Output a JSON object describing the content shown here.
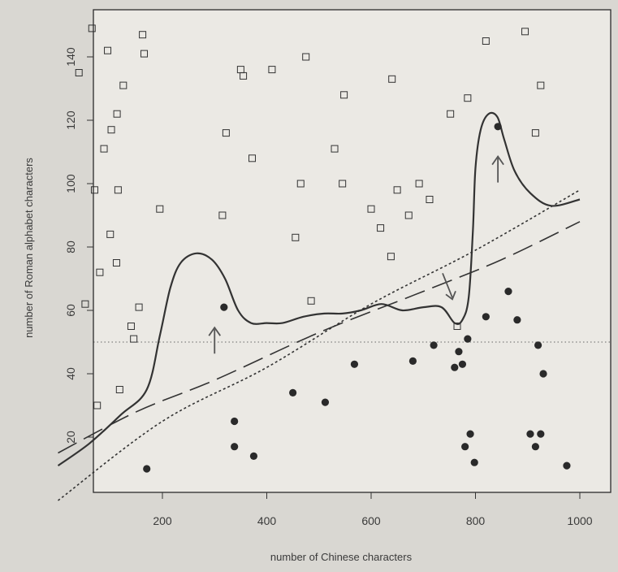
{
  "chart_data": {
    "type": "scatter",
    "title": "",
    "xlabel": "number of Chinese characters",
    "ylabel": "number of Roman alphabet characters",
    "xlim": [
      0,
      1000
    ],
    "ylim": [
      0,
      155
    ],
    "xticks": [
      200,
      400,
      600,
      800,
      1000
    ],
    "yticks": [
      20,
      40,
      60,
      80,
      100,
      120,
      140
    ],
    "grid": false,
    "legend": "none",
    "reference_line_y": 50,
    "series": [
      {
        "marker": "open-square",
        "points": [
          [
            40,
            135
          ],
          [
            52,
            62
          ],
          [
            65,
            149
          ],
          [
            70,
            98
          ],
          [
            75,
            30
          ],
          [
            80,
            72
          ],
          [
            88,
            111
          ],
          [
            95,
            142
          ],
          [
            100,
            84
          ],
          [
            102,
            117
          ],
          [
            112,
            75
          ],
          [
            113,
            122
          ],
          [
            115,
            98
          ],
          [
            118,
            35
          ],
          [
            125,
            131
          ],
          [
            140,
            55
          ],
          [
            145,
            51
          ],
          [
            155,
            61
          ],
          [
            162,
            147
          ],
          [
            165,
            141
          ],
          [
            195,
            92
          ],
          [
            315,
            90
          ],
          [
            322,
            116
          ],
          [
            350,
            136
          ],
          [
            355,
            134
          ],
          [
            372,
            108
          ],
          [
            410,
            136
          ],
          [
            455,
            83
          ],
          [
            465,
            100
          ],
          [
            475,
            140
          ],
          [
            485,
            63
          ],
          [
            530,
            111
          ],
          [
            545,
            100
          ],
          [
            548,
            128
          ],
          [
            600,
            92
          ],
          [
            618,
            86
          ],
          [
            638,
            77
          ],
          [
            640,
            133
          ],
          [
            650,
            98
          ],
          [
            672,
            90
          ],
          [
            692,
            100
          ],
          [
            712,
            95
          ],
          [
            752,
            122
          ],
          [
            765,
            55
          ],
          [
            785,
            127
          ],
          [
            820,
            145
          ],
          [
            895,
            148
          ],
          [
            915,
            116
          ],
          [
            925,
            131
          ]
        ]
      },
      {
        "marker": "filled-circle",
        "points": [
          [
            170,
            10
          ],
          [
            318,
            61
          ],
          [
            338,
            25
          ],
          [
            338,
            17
          ],
          [
            375,
            14
          ],
          [
            450,
            34
          ],
          [
            512,
            31
          ],
          [
            568,
            43
          ],
          [
            680,
            44
          ],
          [
            720,
            49
          ],
          [
            760,
            42
          ],
          [
            768,
            47
          ],
          [
            775,
            43
          ],
          [
            780,
            17
          ],
          [
            785,
            51
          ],
          [
            790,
            21
          ],
          [
            798,
            12
          ],
          [
            820,
            58
          ],
          [
            843,
            118
          ],
          [
            863,
            66
          ],
          [
            880,
            57
          ],
          [
            905,
            21
          ],
          [
            915,
            17
          ],
          [
            920,
            49
          ],
          [
            925,
            21
          ],
          [
            930,
            40
          ],
          [
            975,
            11
          ]
        ]
      }
    ],
    "boundary_curves": [
      {
        "style": "solid",
        "points": [
          [
            0,
            11
          ],
          [
            60,
            18
          ],
          [
            120,
            27
          ],
          [
            170,
            35
          ],
          [
            195,
            52
          ],
          [
            215,
            67
          ],
          [
            235,
            75
          ],
          [
            265,
            78
          ],
          [
            295,
            76
          ],
          [
            320,
            70
          ],
          [
            345,
            60
          ],
          [
            370,
            56
          ],
          [
            400,
            56
          ],
          [
            430,
            56
          ],
          [
            470,
            58
          ],
          [
            510,
            59
          ],
          [
            545,
            59
          ],
          [
            580,
            60
          ],
          [
            620,
            62
          ],
          [
            660,
            60
          ],
          [
            700,
            61
          ],
          [
            735,
            61
          ],
          [
            760,
            56
          ],
          [
            775,
            57
          ],
          [
            787,
            64
          ],
          [
            795,
            85
          ],
          [
            800,
            105
          ],
          [
            810,
            117
          ],
          [
            825,
            122
          ],
          [
            842,
            121
          ],
          [
            855,
            114
          ],
          [
            875,
            104
          ],
          [
            905,
            97
          ],
          [
            945,
            93
          ],
          [
            1000,
            95
          ]
        ]
      },
      {
        "style": "dashed",
        "points": [
          [
            0,
            15
          ],
          [
            150,
            28
          ],
          [
            300,
            38
          ],
          [
            500,
            53
          ],
          [
            700,
            66
          ],
          [
            850,
            76
          ],
          [
            1000,
            88
          ]
        ]
      },
      {
        "style": "dotted",
        "points": [
          [
            0,
            0
          ],
          [
            200,
            25
          ],
          [
            400,
            42
          ],
          [
            600,
            62
          ],
          [
            800,
            79
          ],
          [
            1000,
            98
          ]
        ]
      }
    ]
  }
}
